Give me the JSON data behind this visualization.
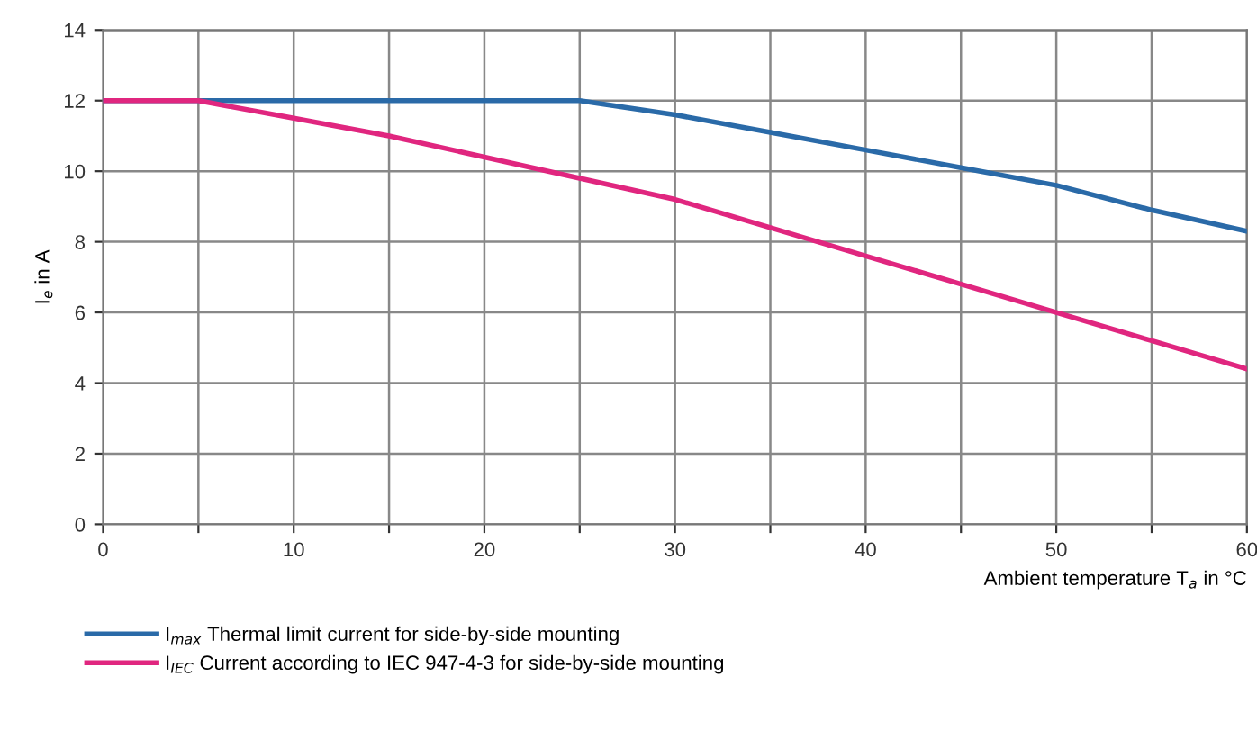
{
  "chart_data": {
    "type": "line",
    "xlabel": "Ambient temperature T$_{a}$ in °C",
    "ylabel": "I$_{e}$ in A",
    "xlim": [
      0,
      60
    ],
    "ylim": [
      0,
      14
    ],
    "xticks": [
      0,
      {
        "value": 5,
        "label": null
      },
      10,
      {
        "value": 15,
        "label": null
      },
      20,
      {
        "value": 25,
        "label": null
      },
      30,
      {
        "value": 35,
        "label": null
      },
      40,
      {
        "value": 45,
        "label": null
      },
      50,
      {
        "value": 55,
        "label": null
      },
      60
    ],
    "yticks": [
      0,
      2,
      4,
      6,
      8,
      10,
      12,
      14
    ],
    "x": [
      0,
      5,
      10,
      15,
      20,
      25,
      30,
      35,
      40,
      45,
      50,
      55,
      60
    ],
    "series": [
      {
        "name": "I$_{max}$ Thermal limit current for side-by-side mounting",
        "color": "#2a6aa8",
        "values": [
          12,
          12,
          12,
          12,
          12,
          12,
          11.6,
          11.1,
          10.6,
          10.1,
          9.6,
          8.9,
          8.3
        ]
      },
      {
        "name": "I$_{IEC}$ Current according to IEC 947-4-3 for side-by-side mounting",
        "color": "#e0267f",
        "values": [
          12,
          12,
          11.5,
          11.0,
          10.4,
          9.8,
          9.2,
          8.4,
          7.6,
          6.8,
          6.0,
          5.2,
          4.4
        ]
      }
    ],
    "grid": true,
    "legend": "bottom left",
    "line_style": "solid",
    "marker": "none"
  }
}
